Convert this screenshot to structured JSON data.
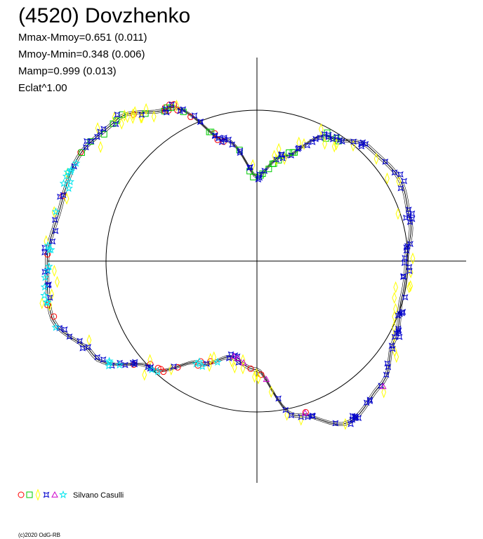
{
  "title": "(4520) Dovzhenko",
  "stats": [
    "Mmax-Mmoy=0.651 (0.011)",
    "Mmoy-Mmin=0.348 (0.006)",
    "Mamp=0.999 (0.013)",
    "Eclat^1.00"
  ],
  "legend": {
    "author": "Silvano Casulli",
    "symbols": [
      {
        "symbol": "circle",
        "color": "#ff0000"
      },
      {
        "symbol": "square",
        "color": "#00cc00"
      },
      {
        "symbol": "diamond",
        "color": "#ffff00"
      },
      {
        "symbol": "star4",
        "color": "#0000cc"
      },
      {
        "symbol": "triangle",
        "color": "#cc00cc"
      },
      {
        "symbol": "star",
        "color": "#00e5ee"
      }
    ]
  },
  "copyright": "(c)2020 OdG-RB",
  "chart_data": {
    "type": "polar",
    "description_of_axes": "polar lightcurve; reference circle = mean magnitude",
    "reference_radius": 1.0,
    "model_curve": {
      "angle_deg": [
        0,
        15,
        30,
        45,
        60,
        75,
        90,
        105,
        120,
        135,
        150,
        165,
        180,
        195,
        210,
        225,
        240,
        255,
        270,
        285,
        300,
        315,
        330,
        345,
        360
      ],
      "radius": [
        0.56,
        0.72,
        0.95,
        1.06,
        1.09,
        1.05,
        0.99,
        0.99,
        1.05,
        1.16,
        1.23,
        1.06,
        0.72,
        0.66,
        0.78,
        1.0,
        1.25,
        1.41,
        1.39,
        1.35,
        1.37,
        1.32,
        1.17,
        0.83,
        0.56
      ]
    },
    "series": [
      {
        "symbol": "circle",
        "color": "#ff0000",
        "arc_deg": [
          160,
          345
        ]
      },
      {
        "symbol": "square",
        "color": "#00cc00",
        "arc_deg": [
          300,
          400
        ]
      },
      {
        "symbol": "diamond",
        "color": "#ffff00",
        "arc_deg": [
          0,
          360
        ]
      },
      {
        "symbol": "star4",
        "color": "#0000cc",
        "arc_deg": [
          0,
          360
        ]
      },
      {
        "symbol": "triangle",
        "color": "#cc00cc",
        "arc_deg": [
          120,
          200
        ]
      },
      {
        "symbol": "star",
        "color": "#00e5ee",
        "arc_deg": [
          200,
          300
        ]
      }
    ]
  }
}
